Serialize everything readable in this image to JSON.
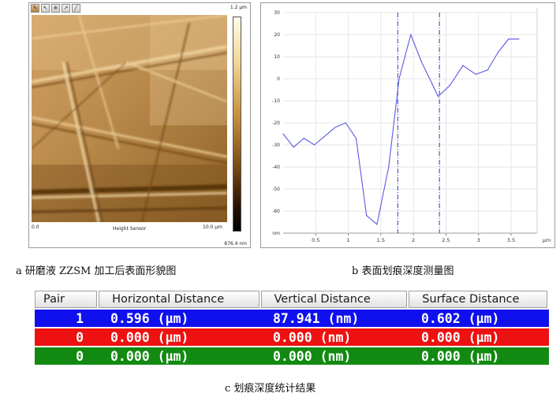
{
  "panel_a": {
    "scale_top_label": "1.2 µm",
    "scale_bottom_label": "876.4 nm",
    "x_start_label": "0.0",
    "x_end_label": "10.0 µm",
    "x_axis_label": "Height Sensor",
    "caption": "a 研磨液 ZZSM 加工后表面形貌图"
  },
  "panel_b": {
    "caption": "b 表面划痕深度测量图"
  },
  "chart_data": {
    "type": "line",
    "x": [
      0.0,
      0.16,
      0.32,
      0.48,
      0.64,
      0.8,
      0.96,
      1.12,
      1.28,
      1.44,
      1.62,
      1.78,
      1.96,
      2.12,
      2.38,
      2.56,
      2.76,
      2.96,
      3.14,
      3.3,
      3.46,
      3.62
    ],
    "y": [
      -25,
      -31,
      -27,
      -30,
      -26,
      -22,
      -20,
      -27,
      -62,
      -66,
      -40,
      0,
      20,
      8,
      -8,
      -3,
      6,
      2,
      4,
      12,
      18,
      18
    ],
    "x_ticks": [
      "0.5",
      "1",
      "1.5",
      "2",
      "2.5",
      "3",
      "3.5"
    ],
    "x_unit": "µm",
    "y_ticks": [
      "30",
      "20",
      "10",
      "0",
      "-10",
      "-20",
      "-30",
      "-40",
      "-50",
      "-60"
    ],
    "y_unit": "nm",
    "xlim": [
      0,
      3.9
    ],
    "ylim": [
      -70,
      30
    ],
    "cursors_x": [
      1.76,
      2.4
    ],
    "line_color": "#5a5ae6",
    "cursor_color": "#3a3aaa"
  },
  "panel_c": {
    "headers": [
      "Pair",
      "Horizontal Distance",
      "Vertical Distance",
      "Surface Distance"
    ],
    "rows": [
      {
        "color": "#1010ee",
        "cells": [
          "1",
          "0.596 (µm)",
          "87.941 (nm)",
          "0.602 (µm)"
        ]
      },
      {
        "color": "#ee1111",
        "cells": [
          "0",
          "0.000 (µm)",
          "0.000 (nm)",
          "0.000 (µm)"
        ]
      },
      {
        "color": "#128a12",
        "cells": [
          "0",
          "0.000 (µm)",
          "0.000 (nm)",
          "0.000 (µm)"
        ]
      }
    ],
    "caption": "c 划痕深度统计结果"
  }
}
